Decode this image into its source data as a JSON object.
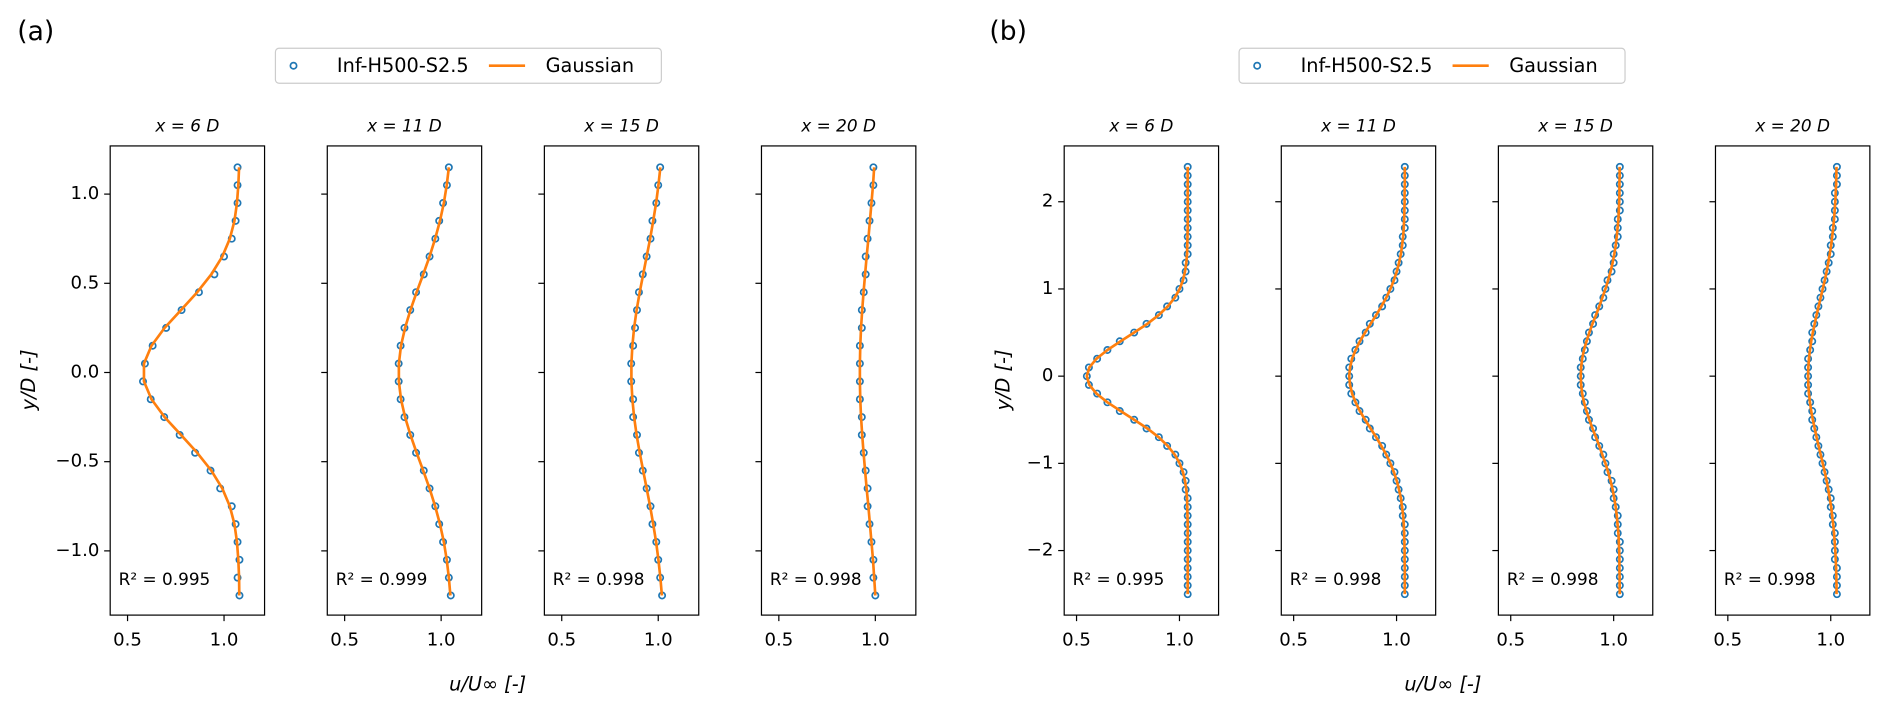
{
  "figures": [
    {
      "label": "(a)",
      "xlabel": "u/U∞ [-]",
      "ylabel": "y/D [-]",
      "series": [
        {
          "name": "Inf-H500-S2.5",
          "color": "#1f77b4",
          "type": "scatter"
        },
        {
          "name": "Gaussian",
          "color": "#ff7f0e",
          "type": "line"
        }
      ],
      "xlim": [
        0.41,
        1.21
      ],
      "xticks": [
        0.5,
        {
          "value": 1,
          "label": "1.0"
        }
      ],
      "ylim": [
        -1.36,
        1.27
      ],
      "yticks": [
        {
          "value": -1,
          "label": "−1.0"
        },
        {
          "value": -0.5,
          "label": "−0.5"
        },
        {
          "value": 0,
          "label": "0.0"
        },
        0.5,
        {
          "value": 1,
          "label": "1.0"
        }
      ],
      "y": [
        -1.25,
        -1.15,
        -1.05,
        -0.95,
        -0.85,
        -0.75,
        -0.65,
        -0.55,
        -0.45,
        -0.35,
        -0.25,
        -0.15,
        -0.05,
        0.05,
        0.15,
        0.25,
        0.35,
        0.45,
        0.55,
        0.65,
        0.75,
        0.85,
        0.95,
        1.05,
        1.15
      ],
      "chart_data": [
        {
          "type": "scatter",
          "title": "x = 6 D",
          "annotation": "R² = 0.995",
          "x": [
            [
              1.08,
              1.07,
              1.08,
              1.07,
              1.06,
              1.04,
              0.98,
              0.93,
              0.85,
              0.77,
              0.69,
              0.62,
              0.58,
              0.59,
              0.63,
              0.7,
              0.78,
              0.87,
              0.95,
              1.0,
              1.04,
              1.06,
              1.07,
              1.07,
              1.07
            ],
            [
              1.079,
              1.078,
              1.074,
              1.067,
              1.054,
              1.03,
              0.991,
              0.934,
              0.861,
              0.777,
              0.692,
              0.624,
              0.585,
              0.585,
              0.624,
              0.692,
              0.777,
              0.861,
              0.934,
              0.991,
              1.03,
              1.054,
              1.067,
              1.074,
              1.078
            ]
          ]
        },
        {
          "type": "scatter",
          "title": "x = 11 D",
          "annotation": "R² = 0.999",
          "x": [
            [
              1.05,
              1.04,
              1.03,
              1.01,
              0.99,
              0.97,
              0.94,
              0.91,
              0.87,
              0.84,
              0.81,
              0.79,
              0.78,
              0.78,
              0.79,
              0.81,
              0.84,
              0.87,
              0.91,
              0.94,
              0.97,
              0.99,
              1.01,
              1.03,
              1.04
            ],
            [
              1.048,
              1.04,
              1.029,
              1.014,
              0.994,
              0.969,
              0.94,
              0.907,
              0.873,
              0.841,
              0.813,
              0.792,
              0.781,
              0.781,
              0.792,
              0.813,
              0.841,
              0.873,
              0.907,
              0.94,
              0.969,
              0.994,
              1.014,
              1.029,
              1.04
            ]
          ]
        },
        {
          "type": "scatter",
          "title": "x = 15 D",
          "annotation": "R² = 0.998",
          "x": [
            [
              1.02,
              1.01,
              1.0,
              0.99,
              0.97,
              0.96,
              0.94,
              0.92,
              0.9,
              0.89,
              0.87,
              0.87,
              0.86,
              0.86,
              0.87,
              0.88,
              0.89,
              0.9,
              0.92,
              0.94,
              0.96,
              0.97,
              0.99,
              1.0,
              1.01
            ],
            [
              1.019,
              1.011,
              1.001,
              0.989,
              0.974,
              0.958,
              0.94,
              0.922,
              0.904,
              0.888,
              0.875,
              0.866,
              0.861,
              0.861,
              0.866,
              0.875,
              0.888,
              0.904,
              0.922,
              0.94,
              0.958,
              0.974,
              0.989,
              1.001,
              1.011
            ]
          ]
        },
        {
          "type": "scatter",
          "title": "x = 20 D",
          "annotation": "R² = 0.998",
          "x": [
            [
              1.0,
              0.99,
              0.99,
              0.98,
              0.97,
              0.96,
              0.96,
              0.95,
              0.94,
              0.93,
              0.93,
              0.92,
              0.92,
              0.92,
              0.92,
              0.93,
              0.93,
              0.94,
              0.95,
              0.95,
              0.96,
              0.97,
              0.98,
              0.99,
              0.99
            ],
            [
              1.0,
              0.994,
              0.988,
              0.98,
              0.972,
              0.964,
              0.955,
              0.947,
              0.939,
              0.932,
              0.926,
              0.922,
              0.92,
              0.92,
              0.922,
              0.926,
              0.932,
              0.939,
              0.947,
              0.955,
              0.964,
              0.972,
              0.98,
              0.988,
              0.994
            ]
          ]
        }
      ]
    },
    {
      "label": "(b)",
      "xlabel": "u/U∞ [-]",
      "ylabel": "y/D [-]",
      "series": [
        {
          "name": "Inf-H500-S2.5",
          "color": "#1f77b4",
          "type": "scatter"
        },
        {
          "name": "Gaussian",
          "color": "#ff7f0e",
          "type": "line"
        }
      ],
      "xlim": [
        0.44,
        1.19
      ],
      "xticks": [
        0.5,
        {
          "value": 1,
          "label": "1.0"
        }
      ],
      "ylim": [
        -2.74,
        2.64
      ],
      "yticks": [
        {
          "value": -2,
          "label": "−2"
        },
        {
          "value": -1,
          "label": "−1"
        },
        0,
        1,
        2
      ],
      "y": [
        -2.5,
        -2.4,
        -2.3,
        -2.2,
        -2.1,
        -2,
        -1.9,
        -1.8,
        -1.7,
        -1.6,
        -1.5,
        -1.4,
        -1.3,
        -1.2,
        -1.1,
        -1,
        -0.9,
        -0.8,
        -0.7,
        -0.6,
        -0.5,
        -0.4,
        -0.3,
        -0.2,
        -0.1,
        0,
        0.1,
        0.2,
        0.3,
        0.4,
        0.5,
        0.6,
        0.7,
        0.8,
        0.9,
        1,
        1.1,
        1.2,
        1.3,
        1.4,
        1.5,
        1.6,
        1.7,
        1.8,
        1.9,
        2,
        2.1,
        2.2,
        2.3,
        2.4
      ],
      "chart_data": [
        {
          "type": "scatter",
          "title": "x = 6 D",
          "annotation": "R² = 0.995",
          "x": [
            [
              1.04,
              1.04,
              1.04,
              1.04,
              1.04,
              1.04,
              1.04,
              1.04,
              1.04,
              1.04,
              1.04,
              1.04,
              1.03,
              1.03,
              1.02,
              1.0,
              0.98,
              0.94,
              0.9,
              0.84,
              0.78,
              0.71,
              0.65,
              0.6,
              0.56,
              0.55,
              0.56,
              0.6,
              0.65,
              0.71,
              0.78,
              0.84,
              0.9,
              0.94,
              0.98,
              1.0,
              1.02,
              1.03,
              1.03,
              1.04,
              1.04,
              1.04,
              1.04,
              1.04,
              1.04,
              1.04,
              1.04,
              1.04,
              1.04,
              1.04
            ],
            [
              1.04,
              1.04,
              1.04,
              1.04,
              1.04,
              1.04,
              1.04,
              1.04,
              1.04,
              1.039,
              1.038,
              1.037,
              1.033,
              1.027,
              1.017,
              1.001,
              0.977,
              0.943,
              0.899,
              0.844,
              0.78,
              0.714,
              0.65,
              0.597,
              0.562,
              0.55,
              0.562,
              0.597,
              0.65,
              0.714,
              0.78,
              0.844,
              0.899,
              0.943,
              0.977,
              1.001,
              1.017,
              1.027,
              1.033,
              1.037,
              1.038,
              1.039,
              1.04,
              1.04,
              1.04,
              1.04,
              1.04,
              1.04,
              1.04,
              1.04
            ]
          ]
        },
        {
          "type": "scatter",
          "title": "x = 11 D",
          "annotation": "R² = 0.998",
          "x": [
            [
              1.04,
              1.04,
              1.04,
              1.04,
              1.04,
              1.04,
              1.04,
              1.04,
              1.04,
              1.03,
              1.03,
              1.02,
              1.01,
              1.0,
              0.99,
              0.97,
              0.95,
              0.93,
              0.9,
              0.87,
              0.85,
              0.82,
              0.8,
              0.78,
              0.77,
              0.77,
              0.77,
              0.78,
              0.8,
              0.82,
              0.85,
              0.87,
              0.9,
              0.93,
              0.95,
              0.97,
              0.99,
              1.0,
              1.01,
              1.02,
              1.03,
              1.03,
              1.04,
              1.04,
              1.04,
              1.04,
              1.04,
              1.04,
              1.04,
              1.04
            ],
            [
              1.04,
              1.04,
              1.04,
              1.04,
              1.039,
              1.039,
              1.038,
              1.037,
              1.035,
              1.032,
              1.027,
              1.021,
              1.012,
              1.001,
              0.987,
              0.97,
              0.95,
              0.926,
              0.901,
              0.874,
              0.847,
              0.822,
              0.801,
              0.784,
              0.774,
              0.77,
              0.774,
              0.784,
              0.801,
              0.822,
              0.847,
              0.874,
              0.901,
              0.926,
              0.95,
              0.97,
              0.987,
              1.001,
              1.012,
              1.021,
              1.027,
              1.032,
              1.035,
              1.037,
              1.038,
              1.039,
              1.039,
              1.04,
              1.04,
              1.04
            ]
          ]
        },
        {
          "type": "scatter",
          "title": "x = 15 D",
          "annotation": "R² = 0.998",
          "x": [
            [
              1.03,
              1.03,
              1.03,
              1.03,
              1.03,
              1.03,
              1.03,
              1.02,
              1.02,
              1.02,
              1.01,
              1.0,
              1.0,
              0.99,
              0.97,
              0.96,
              0.95,
              0.93,
              0.91,
              0.9,
              0.88,
              0.87,
              0.86,
              0.85,
              0.84,
              0.84,
              0.84,
              0.85,
              0.86,
              0.87,
              0.88,
              0.9,
              0.91,
              0.93,
              0.95,
              0.96,
              0.97,
              0.99,
              1.0,
              1.0,
              1.01,
              1.02,
              1.02,
              1.02,
              1.03,
              1.03,
              1.03,
              1.03,
              1.03,
              1.03
            ],
            [
              1.03,
              1.029,
              1.029,
              1.028,
              1.028,
              1.027,
              1.025,
              1.023,
              1.019,
              1.015,
              1.01,
              1.003,
              0.995,
              0.985,
              0.973,
              0.96,
              0.945,
              0.93,
              0.914,
              0.897,
              0.882,
              0.868,
              0.856,
              0.847,
              0.842,
              0.84,
              0.842,
              0.847,
              0.856,
              0.868,
              0.882,
              0.897,
              0.914,
              0.93,
              0.945,
              0.96,
              0.973,
              0.985,
              0.995,
              1.003,
              1.01,
              1.015,
              1.019,
              1.023,
              1.025,
              1.027,
              1.028,
              1.028,
              1.029,
              1.029
            ]
          ]
        },
        {
          "type": "scatter",
          "title": "x = 20 D",
          "annotation": "R² = 0.998",
          "x": [
            [
              1.03,
              1.03,
              1.03,
              1.03,
              1.02,
              1.02,
              1.02,
              1.02,
              1.01,
              1.01,
              1.0,
              1.0,
              0.99,
              0.98,
              0.97,
              0.96,
              0.95,
              0.94,
              0.93,
              0.92,
              0.91,
              0.91,
              0.9,
              0.89,
              0.89,
              0.89,
              0.89,
              0.89,
              0.9,
              0.91,
              0.91,
              0.92,
              0.93,
              0.94,
              0.95,
              0.96,
              0.97,
              0.98,
              0.99,
              1.0,
              1.0,
              1.01,
              1.01,
              1.02,
              1.02,
              1.02,
              1.02,
              1.03,
              1.03,
              1.03
            ],
            [
              1.028,
              1.028,
              1.027,
              1.026,
              1.024,
              1.022,
              1.019,
              1.016,
              1.012,
              1.007,
              1.002,
              0.995,
              0.988,
              0.98,
              0.971,
              0.961,
              0.951,
              0.941,
              0.931,
              0.922,
              0.913,
              0.905,
              0.899,
              0.894,
              0.891,
              0.89,
              0.891,
              0.894,
              0.899,
              0.905,
              0.913,
              0.922,
              0.931,
              0.941,
              0.951,
              0.961,
              0.971,
              0.98,
              0.988,
              0.995,
              1.002,
              1.007,
              1.012,
              1.016,
              1.019,
              1.022,
              1.024,
              1.026,
              1.027,
              1.028
            ]
          ]
        }
      ]
    }
  ]
}
